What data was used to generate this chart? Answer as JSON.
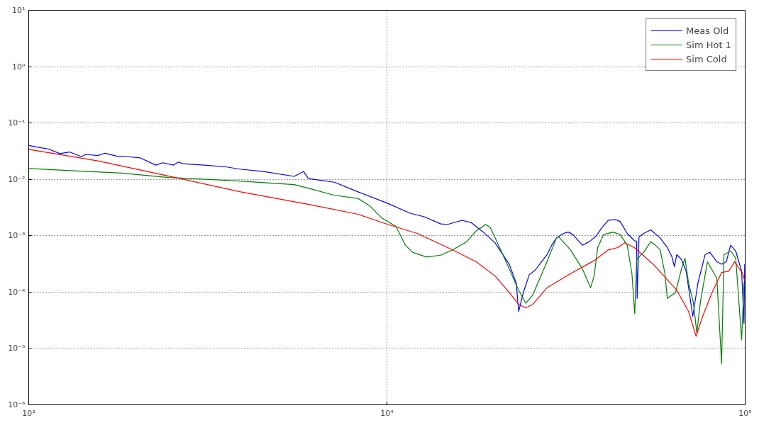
{
  "chart_data": {
    "type": "line",
    "log": "xy",
    "grid": true,
    "legend": "top right",
    "line_style": "solid",
    "marker": "none",
    "xlim": [
      1000,
      100000
    ],
    "ylim": [
      1e-06,
      10
    ],
    "xticks": [
      {
        "value": 1000,
        "label": "10³"
      },
      {
        "value": 10000,
        "label": "10⁴"
      },
      {
        "value": 100000,
        "label": "10⁵"
      }
    ],
    "yticks": [
      {
        "value": 1e-06,
        "label": "10⁻⁶"
      },
      {
        "value": 1e-05,
        "label": "10⁻⁵"
      },
      {
        "value": 0.0001,
        "label": "10⁻⁴"
      },
      {
        "value": 0.001,
        "label": "10⁻³"
      },
      {
        "value": 0.01,
        "label": "10⁻²"
      },
      {
        "value": 0.1,
        "label": "10⁻¹"
      },
      {
        "value": 1,
        "label": "10⁰"
      },
      {
        "value": 10,
        "label": "10¹"
      }
    ],
    "series": [
      {
        "name": "Meas Old",
        "color": "#0000ff",
        "x": [
          1000,
          1082,
          1133,
          1222,
          1299,
          1402,
          1445,
          1559,
          1632,
          1761,
          1871,
          2050,
          2263,
          2369,
          2537,
          2615,
          2696,
          3091,
          3544,
          3883,
          4521,
          5509,
          5853,
          6035,
          7135,
          8305,
          10000,
          11600,
          12710,
          14130,
          14790,
          16200,
          17210,
          18570,
          20040,
          21940,
          22960,
          23310,
          24030,
          24960,
          25930,
          27970,
          28830,
          29720,
          31110,
          32070,
          33050,
          35120,
          36740,
          38460,
          39650,
          41490,
          43420,
          44760,
          46840,
          49030,
          49780,
          49930,
          50540,
          52090,
          54520,
          57920,
          60620,
          62490,
          63450,
          64420,
          66400,
          68440,
          71420,
          73820,
          77270,
          79660,
          83370,
          85940,
          88590,
          91050,
          94120,
          97750,
          99240,
          99700
        ],
        "values": [
          0.04,
          0.0364,
          0.0347,
          0.0286,
          0.0306,
          0.0254,
          0.0277,
          0.0264,
          0.0291,
          0.0259,
          0.0254,
          0.024,
          0.0179,
          0.0197,
          0.0179,
          0.0203,
          0.019,
          0.0179,
          0.0167,
          0.0152,
          0.0138,
          0.0113,
          0.0138,
          0.0103,
          0.0089,
          0.006,
          0.0038,
          0.00251,
          0.00217,
          0.00162,
          0.00159,
          0.00188,
          0.0017,
          0.00116,
          0.000748,
          0.000313,
          0.000145,
          4.52e-05,
          9.82e-05,
          0.000203,
          0.000246,
          0.000461,
          0.000679,
          0.000908,
          0.0011,
          0.00116,
          0.00105,
          0.000679,
          0.000785,
          0.001,
          0.00134,
          0.00188,
          0.00193,
          0.00179,
          0.0011,
          0.000824,
          0.000785,
          7.71e-05,
          0.000953,
          0.0011,
          0.00127,
          0.000908,
          0.000617,
          0.000419,
          0.000284,
          0.000461,
          0.00038,
          0.000234,
          3.72e-05,
          0.000145,
          0.000461,
          0.000508,
          0.000345,
          0.000313,
          0.000345,
          0.000679,
          0.000533,
          0.000234,
          2.79e-05,
          0.000313
        ]
      },
      {
        "name": "Sim Hot 1",
        "color": "#008000",
        "x": [
          1000,
          1339,
          1816,
          2460,
          2865,
          3883,
          5509,
          6128,
          7135,
          8305,
          8963,
          9671,
          10590,
          11260,
          11780,
          12900,
          14130,
          15250,
          16700,
          17740,
          18860,
          19430,
          20640,
          21940,
          23310,
          24410,
          25530,
          27970,
          29720,
          30170,
          32550,
          35120,
          37020,
          37880,
          38760,
          40250,
          42760,
          44760,
          46840,
          48290,
          49170,
          49780,
          52090,
          54520,
          56200,
          57920,
          59700,
          60620,
          63930,
          66400,
          67920,
          69500,
          71640,
          73290,
          74980,
          78460,
          83370,
          85940,
          87260,
          91290,
          94120,
          97750,
          99240
        ],
        "values": [
          0.0156,
          0.0142,
          0.0129,
          0.0108,
          0.0103,
          0.00934,
          0.00807,
          0.00678,
          0.00521,
          0.00459,
          0.00337,
          0.00207,
          0.00147,
          0.000679,
          0.000508,
          0.000419,
          0.000452,
          0.00056,
          0.000785,
          0.00121,
          0.00159,
          0.0014,
          0.000617,
          0.000258,
          0.000108,
          6.35e-05,
          8.91e-05,
          0.000345,
          0.000908,
          0.000953,
          0.00056,
          0.000258,
          0.000119,
          0.000193,
          0.000617,
          0.00105,
          0.00116,
          0.00105,
          0.000679,
          0.000213,
          4.1e-05,
          0.00038,
          0.000508,
          0.000785,
          0.000679,
          0.00056,
          0.000213,
          7.71e-05,
          9.82e-05,
          0.000258,
          0.000399,
          0.000145,
          6.67e-05,
          1.89e-05,
          6.67e-05,
          0.000345,
          0.000175,
          5.38e-06,
          0.000461,
          0.000533,
          0.000399,
          1.42e-05,
          0.000145
        ]
      },
      {
        "name": "Sim Cold",
        "color": "#ff0000",
        "x": [
          1000,
          1559,
          2460,
          3883,
          6128,
          8305,
          10000,
          12140,
          15250,
          17740,
          20040,
          21940,
          23310,
          24410,
          25530,
          27970,
          32550,
          37880,
          41490,
          44090,
          46130,
          49030,
          55350,
          64420,
          69500,
          72950,
          76090,
          80850,
          85940,
          89930,
          93390,
          98490,
          99700
        ],
        "values": [
          0.034,
          0.0213,
          0.0114,
          0.00604,
          0.00354,
          0.0024,
          0.0016,
          0.0011,
          0.00056,
          0.000345,
          0.000193,
          9.82e-05,
          6.05e-05,
          5.23e-05,
          6.05e-05,
          0.000119,
          0.000213,
          0.000362,
          0.00056,
          0.000617,
          0.000748,
          0.000617,
          0.000313,
          0.000108,
          4.52e-05,
          1.64e-05,
          3.72e-05,
          9.82e-05,
          0.000223,
          0.000234,
          0.000345,
          0.000213,
          0.000159
        ]
      }
    ]
  }
}
